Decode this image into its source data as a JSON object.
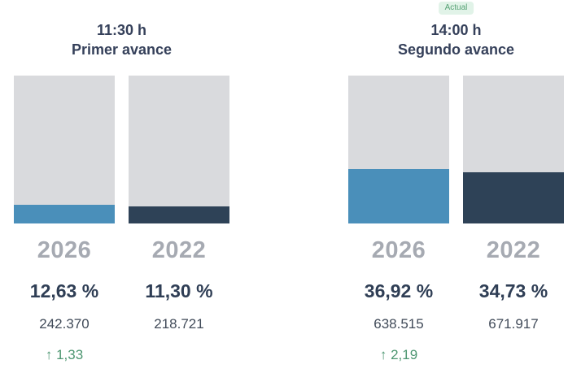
{
  "chart_data": {
    "type": "bar",
    "title": "",
    "unit": "%",
    "ylim": [
      0,
      100
    ],
    "grid": false,
    "colors": {
      "fill_2026": "#4a8fba",
      "fill_2022": "#2e4257",
      "bar_background": "#d9dadd",
      "year_label": "#a6aab2",
      "heading_text": "#35405a",
      "delta_green": "#4d9671",
      "badge_background": "#e1f3e8",
      "badge_text": "#57a275"
    },
    "groups": [
      {
        "badge": "",
        "time": "11:30 h",
        "subtitle": "Primer avance",
        "bars": [
          {
            "year": "2026",
            "pct": 12.63,
            "pct_label": "12,63 %",
            "count": "242.370",
            "delta": "↑ 1,33",
            "color": "#4a8fba"
          },
          {
            "year": "2022",
            "pct": 11.3,
            "pct_label": "11,30 %",
            "count": "218.721",
            "delta": "",
            "color": "#2e4257"
          }
        ]
      },
      {
        "badge": "Actual",
        "time": "14:00 h",
        "subtitle": "Segundo avance",
        "bars": [
          {
            "year": "2026",
            "pct": 36.92,
            "pct_label": "36,92 %",
            "count": "638.515",
            "delta": "↑ 2,19",
            "color": "#4a8fba"
          },
          {
            "year": "2022",
            "pct": 34.73,
            "pct_label": "34,73 %",
            "count": "671.917",
            "delta": "",
            "color": "#2e4257"
          }
        ]
      }
    ]
  }
}
